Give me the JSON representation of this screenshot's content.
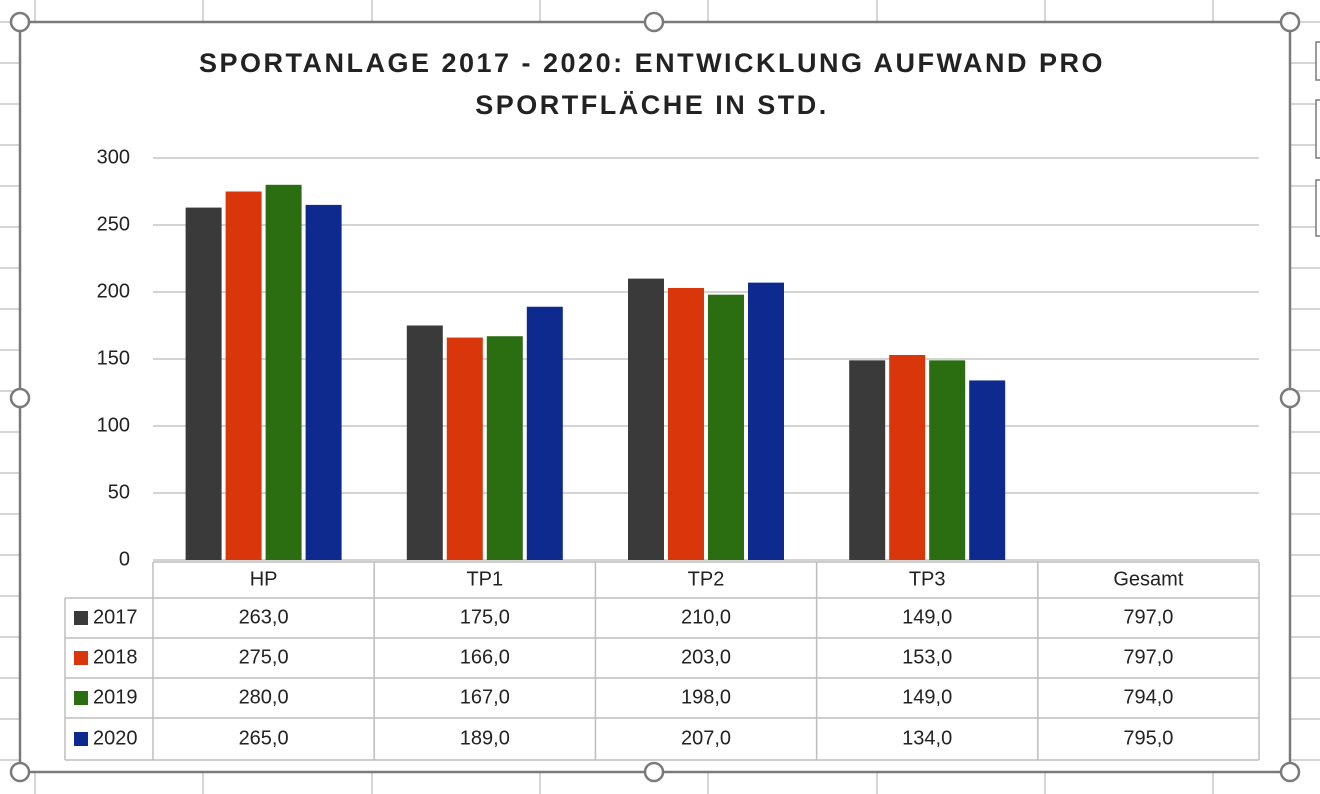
{
  "chart_data": {
    "type": "bar",
    "title": "SPORTANLAGE 2017 - 2020: ENTWICKLUNG AUFWAND PRO SPORTFLÄCHE IN STD.",
    "categories": [
      "HP",
      "TP1",
      "TP2",
      "TP3",
      "Gesamt"
    ],
    "series": [
      {
        "name": "2017",
        "color": "#3a3a3a",
        "values": [
          263,
          175,
          210,
          149,
          797
        ],
        "value_labels": [
          "263,0",
          "175,0",
          "210,0",
          "149,0",
          "797,0"
        ]
      },
      {
        "name": "2018",
        "color": "#d9360b",
        "values": [
          275,
          166,
          203,
          153,
          797
        ],
        "value_labels": [
          "275,0",
          "166,0",
          "203,0",
          "153,0",
          "797,0"
        ]
      },
      {
        "name": "2019",
        "color": "#2b6e12",
        "values": [
          280,
          167,
          198,
          149,
          794
        ],
        "value_labels": [
          "280,0",
          "167,0",
          "198,0",
          "149,0",
          "794,0"
        ]
      },
      {
        "name": "2020",
        "color": "#0f2a8f",
        "values": [
          265,
          189,
          207,
          134,
          795
        ],
        "value_labels": [
          "265,0",
          "189,0",
          "207,0",
          "134,0",
          "795,0"
        ]
      }
    ],
    "ylim": [
      0,
      300
    ],
    "yticks": [
      0,
      50,
      100,
      150,
      200,
      250,
      300
    ],
    "grid": true
  }
}
